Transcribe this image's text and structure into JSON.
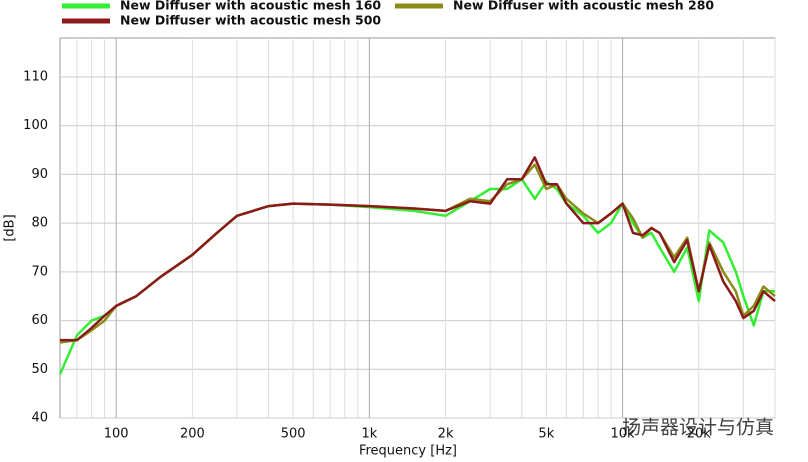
{
  "chart_data": {
    "type": "line",
    "xlabel": "Frequency [Hz]",
    "ylabel": "[dB]",
    "log_x": true,
    "grid": true,
    "xlim": [
      60,
      40000
    ],
    "ylim": [
      40,
      118
    ],
    "xticks": [
      100,
      200,
      500,
      {
        "value": 1000,
        "label": "1k"
      },
      {
        "value": 2000,
        "label": "2k"
      },
      {
        "value": 5000,
        "label": "5k"
      },
      {
        "value": 10000,
        "label": "10k"
      },
      {
        "value": 20000,
        "label": "20k"
      }
    ],
    "xminorticks": [
      70,
      80,
      90,
      300,
      400,
      600,
      700,
      800,
      900,
      3000,
      4000,
      6000,
      7000,
      8000,
      9000,
      30000,
      40000
    ],
    "yticks": [
      40,
      50,
      60,
      70,
      80,
      90,
      100,
      110
    ],
    "x": [
      60,
      70,
      80,
      90,
      100,
      120,
      150,
      200,
      250,
      300,
      400,
      500,
      700,
      1000,
      1500,
      2000,
      2500,
      3000,
      3500,
      4000,
      4500,
      5000,
      5500,
      6000,
      7000,
      8000,
      9000,
      10000,
      11000,
      12000,
      13000,
      14000,
      16000,
      18000,
      20000,
      22000,
      25000,
      28000,
      30000,
      33000,
      36000,
      40000
    ],
    "series": [
      {
        "name": "New Diffuser with acoustic mesh 160",
        "color": "#33ee33",
        "values": [
          49,
          57,
          60,
          61,
          63,
          65,
          69,
          73.5,
          78,
          81.5,
          83.5,
          84,
          83.8,
          83.3,
          82.5,
          81.5,
          84.5,
          87,
          87,
          89,
          85,
          88.5,
          87,
          84,
          81.5,
          78,
          80,
          84,
          80,
          77,
          78,
          75,
          70,
          75,
          64,
          78.5,
          76,
          70,
          65,
          59,
          66,
          66
        ]
      },
      {
        "name": "New Diffuser with acoustic mesh 280",
        "color": "#8b8b1a",
        "values": [
          55.5,
          56,
          58,
          60,
          63,
          65,
          69,
          73.5,
          78,
          81.5,
          83.5,
          84,
          83.8,
          83.5,
          83,
          82.5,
          85,
          84.5,
          88,
          89,
          92,
          87,
          88,
          85,
          82,
          80,
          82,
          84,
          81,
          77,
          79,
          78,
          73,
          77,
          66,
          76,
          70,
          66,
          61,
          63,
          67,
          65
        ]
      },
      {
        "name": "New Diffuser with acoustic mesh 500",
        "color": "#8b1a1a",
        "values": [
          56,
          56,
          58.5,
          61,
          63,
          65,
          69,
          73.5,
          78,
          81.5,
          83.5,
          84,
          83.8,
          83.5,
          83,
          82.5,
          84.5,
          84,
          89,
          89,
          93.5,
          88,
          88,
          84,
          80,
          80,
          82,
          84,
          78,
          77.5,
          79,
          78,
          72,
          76.5,
          66,
          75.5,
          68,
          64,
          60.5,
          62,
          66,
          64
        ]
      }
    ],
    "watermark": "扬声器设计与仿真"
  }
}
